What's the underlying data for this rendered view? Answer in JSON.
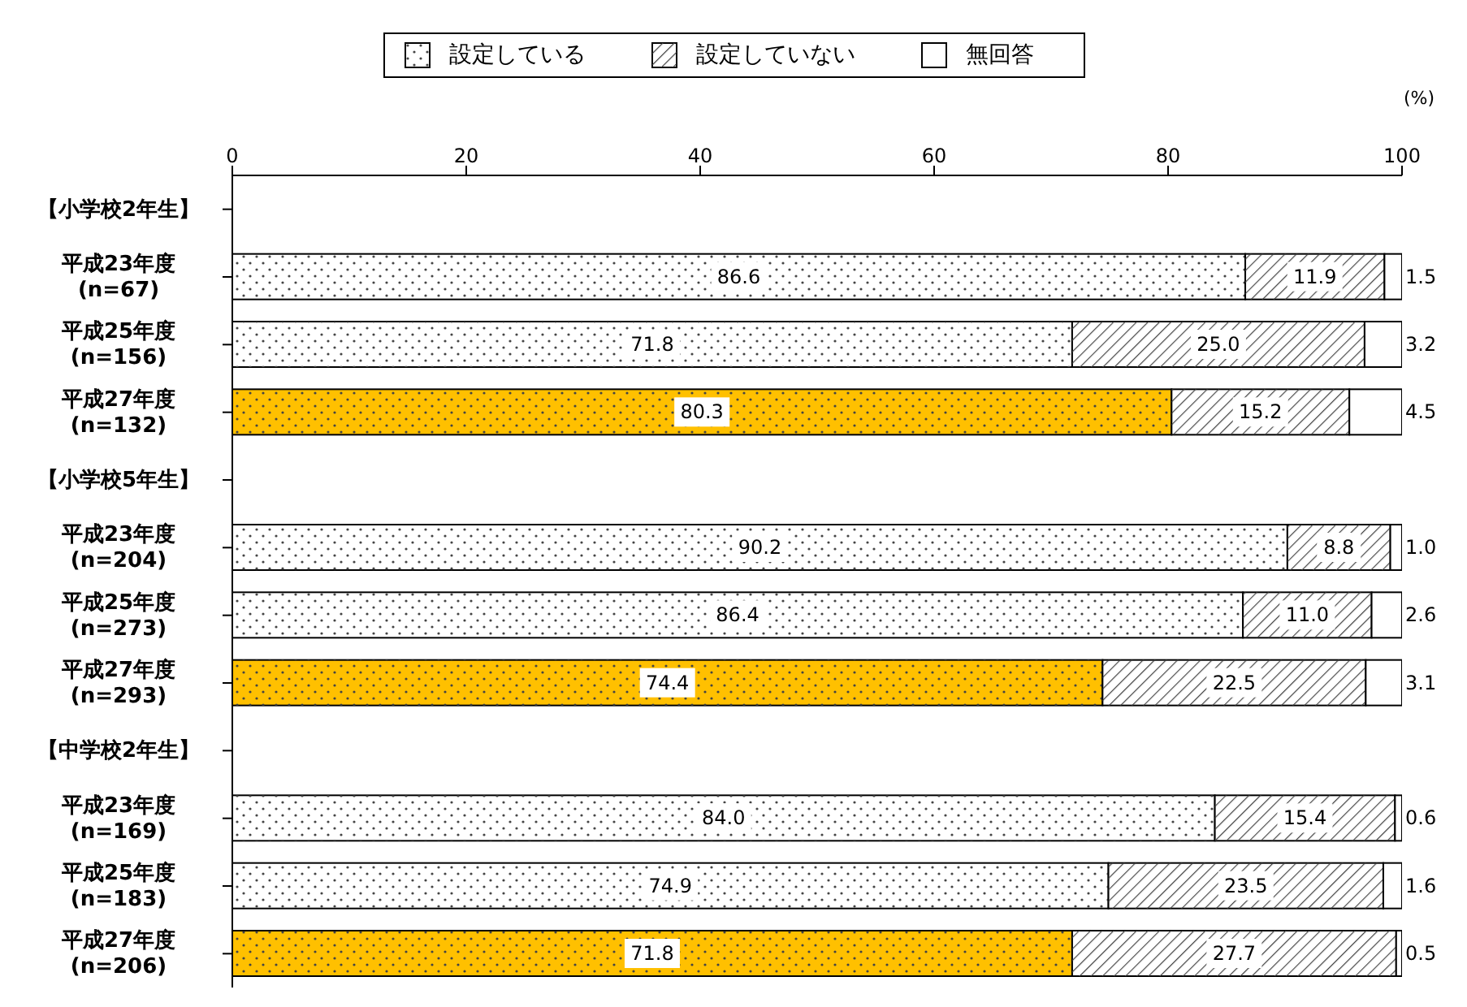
{
  "chart_data": {
    "type": "bar",
    "orientation": "horizontal",
    "stacked": true,
    "xlabel": "(%)",
    "categories": [
      "【小学校2年生】",
      "平成23年度\n(n=67)",
      "平成25年度\n(n=156)",
      "平成27年度\n(n=132)",
      "【小学校5年生】",
      "平成23年度\n(n=204)",
      "平成25年度\n(n=273)",
      "平成27年度\n(n=293)",
      "【中学校2年生】",
      "平成23年度\n(n=169)",
      "平成25年度\n(n=183)",
      "平成27年度\n(n=206)"
    ],
    "series": [
      {
        "name": "設定している",
        "color": "#ffffff",
        "colors": [
          "#ffffff",
          "#ffffff",
          "#ffffff",
          "#ffc000",
          "#ffffff",
          "#ffffff",
          "#ffffff",
          "#ffc000",
          "#ffffff",
          "#ffffff",
          "#ffffff",
          "#ffc000"
        ],
        "values": [
          null,
          86.6,
          71.8,
          80.3,
          null,
          90.2,
          86.4,
          74.4,
          null,
          84.0,
          74.9,
          71.8
        ],
        "value_labels": [
          null,
          "86.6",
          "71.8",
          "80.3",
          null,
          "90.2",
          "86.4",
          "74.4",
          null,
          "84.0",
          "74.9",
          "71.8"
        ]
      },
      {
        "name": "設定していない",
        "color": "#ffffff",
        "values": [
          null,
          11.9,
          25.0,
          15.2,
          null,
          8.8,
          11.0,
          22.5,
          null,
          15.4,
          23.5,
          27.7
        ],
        "value_labels": [
          null,
          "11.9",
          "25.0",
          "15.2",
          null,
          "8.8",
          "11.0",
          "22.5",
          null,
          "15.4",
          "23.5",
          "27.7"
        ]
      },
      {
        "name": "無回答",
        "color": "#ffffff",
        "values": [
          null,
          1.5,
          3.2,
          4.5,
          null,
          1.0,
          2.6,
          3.1,
          null,
          0.6,
          1.6,
          0.5
        ],
        "value_labels": [
          null,
          "1.5",
          "3.2",
          "4.5",
          null,
          "1.0",
          "2.6",
          "3.1",
          null,
          "0.6",
          "1.6",
          "0.5"
        ]
      }
    ],
    "xlim": [
      0,
      100
    ],
    "xticks": [
      0,
      20,
      40,
      60,
      80,
      100
    ],
    "legend": "top"
  }
}
